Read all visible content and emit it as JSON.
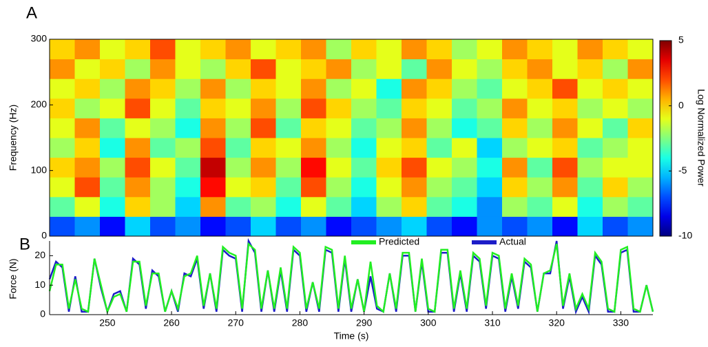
{
  "panel_labels": [
    "A",
    "B"
  ],
  "chart_data": [
    {
      "type": "heatmap",
      "ylabel": "Frequency (Hz)",
      "colorbar_label": "Log Normalized Power",
      "colormap": "jet",
      "xlim": [
        241,
        335
      ],
      "ylim": [
        0,
        300
      ],
      "yticks": [
        0,
        100,
        200,
        300
      ],
      "clim": [
        -10,
        5
      ],
      "cticks": [
        -10,
        -5,
        0,
        5
      ],
      "z": [
        [
          -7,
          -6,
          -8,
          -5,
          -7,
          -6,
          -8,
          -7,
          -5,
          -7,
          -6,
          -8,
          -7,
          -6,
          -5,
          -7,
          -8,
          -6,
          -7,
          -6,
          -8,
          -5,
          -7,
          -6
        ],
        [
          -3,
          -1,
          -4,
          0,
          -2,
          -5,
          1,
          -3,
          -2,
          -4,
          -1,
          -3,
          -5,
          -2,
          0,
          -3,
          -4,
          -6,
          -2,
          -3,
          -1,
          -4,
          -2,
          -3
        ],
        [
          -1,
          2,
          -3,
          1,
          -2,
          -4,
          3,
          -1,
          0,
          -3,
          2,
          -2,
          -4,
          -1,
          1,
          -2,
          -3,
          -5,
          0,
          -2,
          1,
          -3,
          0,
          -2
        ],
        [
          0,
          1,
          -2,
          2,
          -1,
          -3,
          4,
          -2,
          1,
          -2,
          3,
          -1,
          -3,
          0,
          2,
          -1,
          -2,
          -4,
          1,
          -3,
          2,
          -2,
          -1,
          -1
        ],
        [
          -2,
          0,
          -4,
          1,
          -3,
          -2,
          2,
          -3,
          0,
          -1,
          1,
          -2,
          -4,
          -1,
          0,
          -3,
          -1,
          -5,
          -2,
          -1,
          0,
          -3,
          -2,
          -1
        ],
        [
          -1,
          1,
          -3,
          -1,
          -2,
          -4,
          1,
          -2,
          2,
          -3,
          0,
          -1,
          -3,
          -2,
          1,
          -2,
          -4,
          -3,
          0,
          -2,
          1,
          -1,
          -3,
          0
        ],
        [
          0,
          -2,
          -1,
          2,
          -1,
          -3,
          0,
          -1,
          1,
          -2,
          2,
          0,
          -2,
          -3,
          0,
          -1,
          -3,
          -2,
          1,
          -1,
          0,
          -2,
          -1,
          -2
        ],
        [
          -1,
          0,
          -2,
          1,
          0,
          -2,
          1,
          -2,
          0,
          -1,
          1,
          -2,
          -1,
          -4,
          1,
          0,
          -2,
          -3,
          -1,
          0,
          2,
          -1,
          0,
          -1
        ],
        [
          1,
          -1,
          0,
          -2,
          1,
          -1,
          -2,
          0,
          2,
          -1,
          0,
          1,
          -2,
          -1,
          -3,
          1,
          -1,
          -2,
          0,
          1,
          -1,
          0,
          -2,
          1
        ],
        [
          0,
          1,
          -1,
          0,
          2,
          -1,
          0,
          1,
          -1,
          0,
          1,
          -2,
          0,
          -1,
          1,
          0,
          -2,
          -1,
          1,
          0,
          -1,
          1,
          0,
          -1
        ]
      ]
    },
    {
      "type": "line",
      "xlabel": "Time (s)",
      "ylabel": "Force (N)",
      "xlim": [
        241,
        335
      ],
      "xticks": [
        250,
        260,
        270,
        280,
        290,
        300,
        310,
        320,
        330
      ],
      "ylim": [
        0,
        25
      ],
      "yticks": [
        0,
        10,
        20
      ],
      "x": [
        241,
        242,
        243,
        244,
        245,
        246,
        247,
        248,
        249,
        250,
        251,
        252,
        253,
        254,
        255,
        256,
        257,
        258,
        259,
        260,
        261,
        262,
        263,
        264,
        265,
        266,
        267,
        268,
        269,
        270,
        271,
        272,
        273,
        274,
        275,
        276,
        277,
        278,
        279,
        280,
        281,
        282,
        283,
        284,
        285,
        286,
        287,
        288,
        289,
        290,
        291,
        292,
        293,
        294,
        295,
        296,
        297,
        298,
        299,
        300,
        301,
        302,
        303,
        304,
        305,
        306,
        307,
        308,
        309,
        310,
        311,
        312,
        313,
        314,
        315,
        316,
        317,
        318,
        319,
        320,
        321,
        322,
        323,
        324,
        325,
        326,
        327,
        328,
        329,
        330,
        331,
        332,
        333,
        334,
        335
      ],
      "series": [
        {
          "name": "Predicted",
          "color": "#22ee22",
          "values": [
            8,
            17,
            17,
            2,
            12,
            2,
            1,
            19,
            10,
            1,
            6,
            7,
            1,
            18,
            18,
            3,
            14,
            14,
            1,
            8,
            2,
            13,
            14,
            20,
            3,
            14,
            2,
            23,
            21,
            20,
            2,
            24,
            22,
            2,
            15,
            2,
            16,
            2,
            23,
            21,
            2,
            11,
            2,
            23,
            22,
            2,
            20,
            2,
            12,
            1,
            18,
            3,
            1,
            14,
            2,
            21,
            21,
            1,
            19,
            2,
            1,
            22,
            22,
            2,
            15,
            2,
            21,
            19,
            3,
            21,
            20,
            2,
            14,
            3,
            19,
            17,
            1,
            14,
            15,
            24,
            3,
            14,
            2,
            7,
            2,
            21,
            18,
            2,
            1,
            22,
            23,
            2,
            1,
            10,
            1
          ]
        },
        {
          "name": "Actual",
          "color": "#1c1cc8",
          "values": [
            12,
            18,
            16,
            1,
            13,
            1,
            1,
            19,
            9,
            1,
            7,
            8,
            1,
            19,
            17,
            2,
            15,
            13,
            1,
            8,
            1,
            14,
            13,
            19,
            2,
            14,
            1,
            22,
            20,
            19,
            1,
            25,
            21,
            1,
            15,
            1,
            15,
            1,
            22,
            20,
            1,
            11,
            1,
            22,
            21,
            1,
            19,
            1,
            12,
            1,
            13,
            2,
            1,
            14,
            1,
            20,
            20,
            1,
            18,
            1,
            1,
            21,
            21,
            1,
            14,
            1,
            20,
            18,
            2,
            20,
            19,
            1,
            13,
            2,
            18,
            16,
            1,
            14,
            14,
            25,
            2,
            13,
            1,
            6,
            1,
            20,
            17,
            1,
            1,
            21,
            22,
            1,
            1,
            10,
            1
          ]
        }
      ]
    }
  ]
}
